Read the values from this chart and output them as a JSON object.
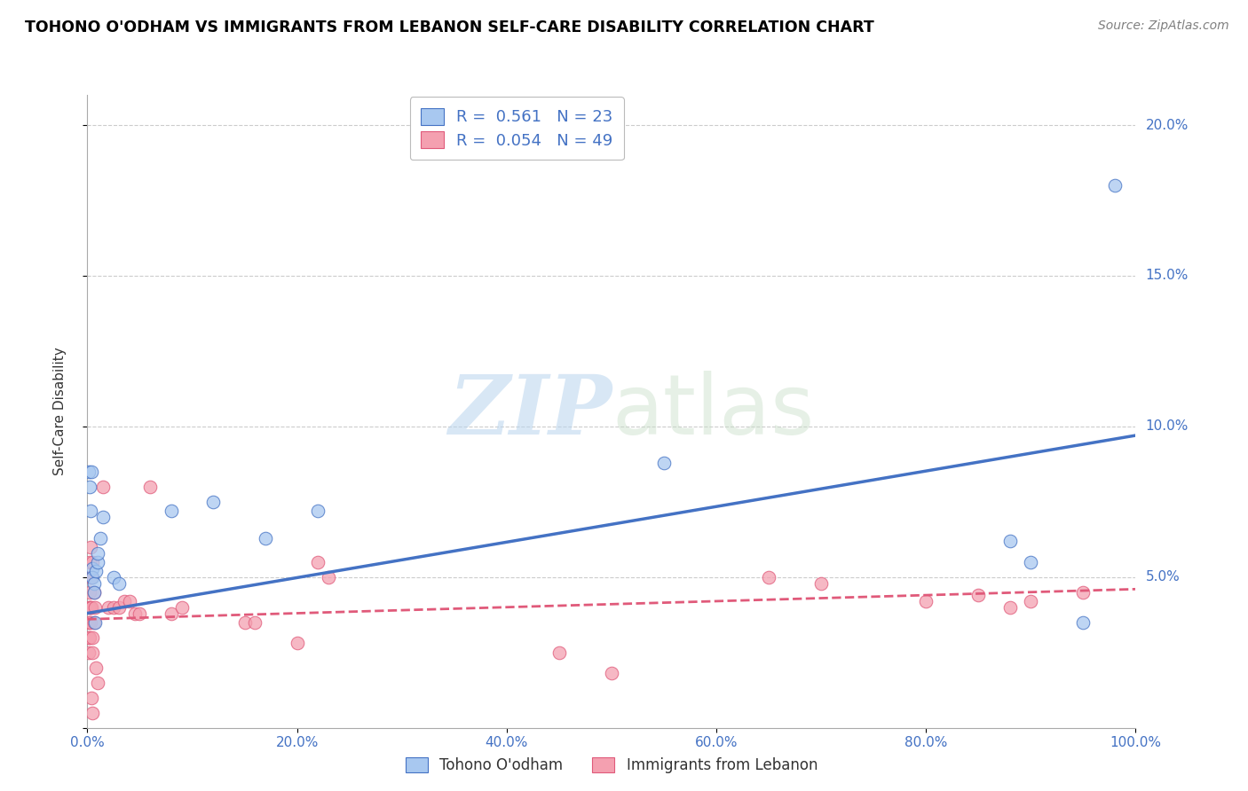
{
  "title": "TOHONO O'ODHAM VS IMMIGRANTS FROM LEBANON SELF-CARE DISABILITY CORRELATION CHART",
  "source": "Source: ZipAtlas.com",
  "ylabel": "Self-Care Disability",
  "legend_label1": "Tohono O'odham",
  "legend_label2": "Immigrants from Lebanon",
  "color_blue": "#A8C8F0",
  "color_pink": "#F4A0B0",
  "line_blue": "#4472C4",
  "line_pink": "#E05A7A",
  "watermark_zip": "ZIP",
  "watermark_atlas": "atlas",
  "xlim": [
    0.0,
    1.0
  ],
  "ylim": [
    0.0,
    0.21
  ],
  "xticks": [
    0.0,
    0.2,
    0.4,
    0.6,
    0.8,
    1.0
  ],
  "yticks_right": [
    0.05,
    0.1,
    0.15,
    0.2
  ],
  "blue_points": [
    [
      0.001,
      0.085
    ],
    [
      0.002,
      0.08
    ],
    [
      0.003,
      0.072
    ],
    [
      0.004,
      0.085
    ],
    [
      0.005,
      0.053
    ],
    [
      0.005,
      0.05
    ],
    [
      0.006,
      0.048
    ],
    [
      0.006,
      0.045
    ],
    [
      0.007,
      0.035
    ],
    [
      0.008,
      0.052
    ],
    [
      0.01,
      0.055
    ],
    [
      0.01,
      0.058
    ],
    [
      0.012,
      0.063
    ],
    [
      0.015,
      0.07
    ],
    [
      0.025,
      0.05
    ],
    [
      0.03,
      0.048
    ],
    [
      0.08,
      0.072
    ],
    [
      0.12,
      0.075
    ],
    [
      0.17,
      0.063
    ],
    [
      0.22,
      0.072
    ],
    [
      0.55,
      0.088
    ],
    [
      0.88,
      0.062
    ],
    [
      0.9,
      0.055
    ],
    [
      0.95,
      0.035
    ],
    [
      0.98,
      0.18
    ]
  ],
  "pink_points": [
    [
      0.001,
      0.04
    ],
    [
      0.001,
      0.035
    ],
    [
      0.001,
      0.03
    ],
    [
      0.001,
      0.025
    ],
    [
      0.002,
      0.055
    ],
    [
      0.002,
      0.045
    ],
    [
      0.002,
      0.04
    ],
    [
      0.002,
      0.03
    ],
    [
      0.003,
      0.06
    ],
    [
      0.003,
      0.05
    ],
    [
      0.003,
      0.04
    ],
    [
      0.003,
      0.035
    ],
    [
      0.004,
      0.05
    ],
    [
      0.004,
      0.04
    ],
    [
      0.004,
      0.01
    ],
    [
      0.005,
      0.055
    ],
    [
      0.005,
      0.03
    ],
    [
      0.005,
      0.025
    ],
    [
      0.005,
      0.005
    ],
    [
      0.006,
      0.045
    ],
    [
      0.006,
      0.035
    ],
    [
      0.007,
      0.04
    ],
    [
      0.008,
      0.02
    ],
    [
      0.01,
      0.015
    ],
    [
      0.015,
      0.08
    ],
    [
      0.02,
      0.04
    ],
    [
      0.025,
      0.04
    ],
    [
      0.03,
      0.04
    ],
    [
      0.035,
      0.042
    ],
    [
      0.04,
      0.042
    ],
    [
      0.045,
      0.038
    ],
    [
      0.05,
      0.038
    ],
    [
      0.06,
      0.08
    ],
    [
      0.08,
      0.038
    ],
    [
      0.09,
      0.04
    ],
    [
      0.15,
      0.035
    ],
    [
      0.16,
      0.035
    ],
    [
      0.2,
      0.028
    ],
    [
      0.22,
      0.055
    ],
    [
      0.23,
      0.05
    ],
    [
      0.45,
      0.025
    ],
    [
      0.5,
      0.018
    ],
    [
      0.65,
      0.05
    ],
    [
      0.7,
      0.048
    ],
    [
      0.8,
      0.042
    ],
    [
      0.85,
      0.044
    ],
    [
      0.88,
      0.04
    ],
    [
      0.9,
      0.042
    ],
    [
      0.95,
      0.045
    ]
  ],
  "blue_line_x": [
    0.0,
    1.0
  ],
  "blue_line_y": [
    0.038,
    0.097
  ],
  "pink_line_x": [
    0.0,
    1.0
  ],
  "pink_line_y": [
    0.036,
    0.046
  ]
}
